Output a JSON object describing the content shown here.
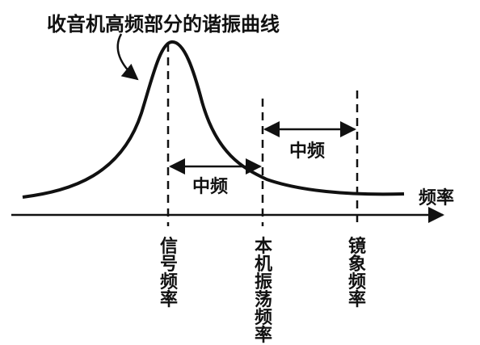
{
  "diagram": {
    "title": "收音机高频部分的谐振曲线",
    "axis_label": "频率",
    "if_label_upper": "中频",
    "if_label_lower": "中频",
    "markers": [
      {
        "label": "信号频率"
      },
      {
        "label": "本机振荡频率"
      },
      {
        "label": "镜象频率"
      }
    ]
  }
}
